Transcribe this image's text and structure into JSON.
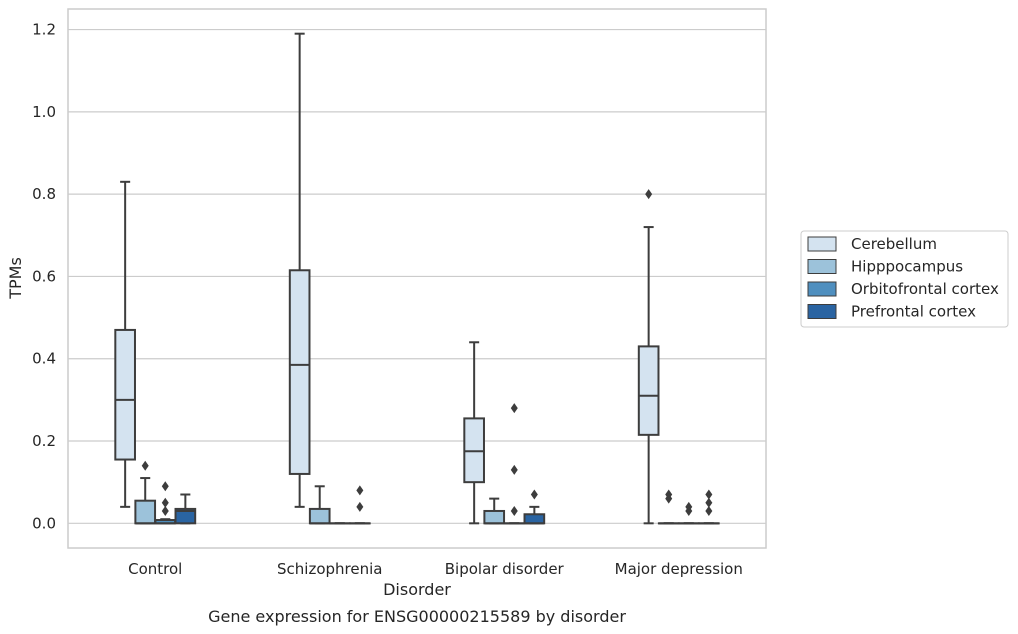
{
  "caption": "Gene expression for ENSG00000215589 by disorder",
  "colors": {
    "Cerebellum": "#d4e3f0",
    "Hipppocampus": "#9cc2da",
    "Orbitofrontal cortex": "#4f8fbf",
    "Prefrontal cortex": "#2a64a2",
    "box_edge": "#3d3d3d",
    "grid": "#cccccc"
  },
  "chart_data": {
    "type": "box",
    "xlabel": "Disorder",
    "ylabel": "TPMs",
    "ylim": [
      -0.06,
      1.25
    ],
    "yticks": [
      0.0,
      0.2,
      0.4,
      0.6,
      0.8,
      1.0,
      1.2
    ],
    "ytick_labels": [
      "0.0",
      "0.2",
      "0.4",
      "0.6",
      "0.8",
      "1.0",
      "1.2"
    ],
    "grid": "horizontal",
    "legend_position": "right",
    "categories": [
      "Control",
      "Schizophrenia",
      "Bipolar disorder",
      "Major depression"
    ],
    "series": [
      {
        "name": "Cerebellum",
        "boxes": [
          {
            "whislo": 0.04,
            "q1": 0.155,
            "med": 0.3,
            "q3": 0.47,
            "whishi": 0.83,
            "fliers": []
          },
          {
            "whislo": 0.04,
            "q1": 0.12,
            "med": 0.385,
            "q3": 0.615,
            "whishi": 1.19,
            "fliers": []
          },
          {
            "whislo": 0.0,
            "q1": 0.1,
            "med": 0.175,
            "q3": 0.255,
            "whishi": 0.44,
            "fliers": []
          },
          {
            "whislo": 0.0,
            "q1": 0.215,
            "med": 0.31,
            "q3": 0.43,
            "whishi": 0.72,
            "fliers": [
              0.8
            ]
          }
        ]
      },
      {
        "name": "Hipppocampus",
        "boxes": [
          {
            "whislo": 0.0,
            "q1": 0.0,
            "med": 0.0,
            "q3": 0.055,
            "whishi": 0.11,
            "fliers": [
              0.14
            ]
          },
          {
            "whislo": 0.0,
            "q1": 0.0,
            "med": 0.0,
            "q3": 0.035,
            "whishi": 0.09,
            "fliers": []
          },
          {
            "whislo": 0.0,
            "q1": 0.0,
            "med": 0.0,
            "q3": 0.03,
            "whishi": 0.06,
            "fliers": []
          },
          {
            "whislo": 0.0,
            "q1": 0.0,
            "med": 0.0,
            "q3": 0.0,
            "whishi": 0.0,
            "fliers": [
              0.06,
              0.07
            ]
          }
        ]
      },
      {
        "name": "Orbitofrontal cortex",
        "boxes": [
          {
            "whislo": 0.0,
            "q1": 0.0,
            "med": 0.0,
            "q3": 0.008,
            "whishi": 0.01,
            "fliers": [
              0.03,
              0.05,
              0.09
            ]
          },
          {
            "whislo": 0.0,
            "q1": 0.0,
            "med": 0.0,
            "q3": 0.0,
            "whishi": 0.0,
            "fliers": []
          },
          {
            "whislo": 0.0,
            "q1": 0.0,
            "med": 0.0,
            "q3": 0.0,
            "whishi": 0.0,
            "fliers": [
              0.03,
              0.13,
              0.28
            ]
          },
          {
            "whislo": 0.0,
            "q1": 0.0,
            "med": 0.0,
            "q3": 0.0,
            "whishi": 0.0,
            "fliers": [
              0.03,
              0.04
            ]
          }
        ]
      },
      {
        "name": "Prefrontal cortex",
        "boxes": [
          {
            "whislo": 0.0,
            "q1": 0.0,
            "med": 0.03,
            "q3": 0.035,
            "whishi": 0.07,
            "fliers": []
          },
          {
            "whislo": 0.0,
            "q1": 0.0,
            "med": 0.0,
            "q3": 0.0,
            "whishi": 0.0,
            "fliers": [
              0.04,
              0.08
            ]
          },
          {
            "whislo": 0.0,
            "q1": 0.0,
            "med": 0.0,
            "q3": 0.022,
            "whishi": 0.04,
            "fliers": [
              0.07
            ]
          },
          {
            "whislo": 0.0,
            "q1": 0.0,
            "med": 0.0,
            "q3": 0.0,
            "whishi": 0.0,
            "fliers": [
              0.03,
              0.05,
              0.07
            ]
          }
        ]
      }
    ]
  }
}
